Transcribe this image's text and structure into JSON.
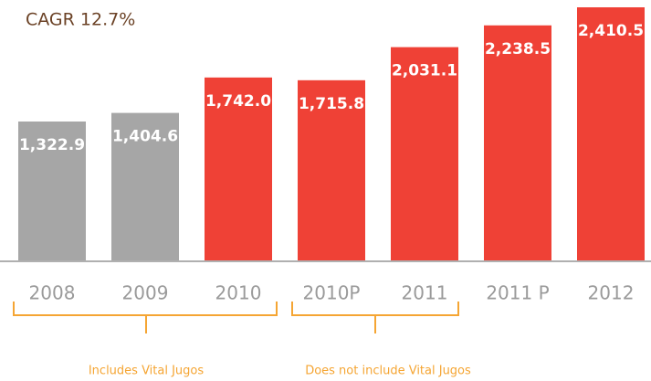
{
  "chart_data": {
    "type": "bar",
    "title": "CAGR 12.7%",
    "categories": [
      "2008",
      "2009",
      "2010",
      "2010P",
      "2011",
      "2011 P",
      "2012"
    ],
    "values": [
      1322.9,
      1404.6,
      1742.0,
      1715.8,
      2031.1,
      2238.5,
      2410.5
    ],
    "value_labels": [
      "1,322.9",
      "1,404.6",
      "1,742.0",
      "1,715.8",
      "2,031.1",
      "2,238.5",
      "2,410.5"
    ],
    "colors": [
      "#a6a6a6",
      "#a6a6a6",
      "#ef4136",
      "#ef4136",
      "#ef4136",
      "#ef4136",
      "#ef4136"
    ],
    "annotations": [
      "Includes Vital Jugos",
      "Does not include Vital Jugos"
    ]
  }
}
